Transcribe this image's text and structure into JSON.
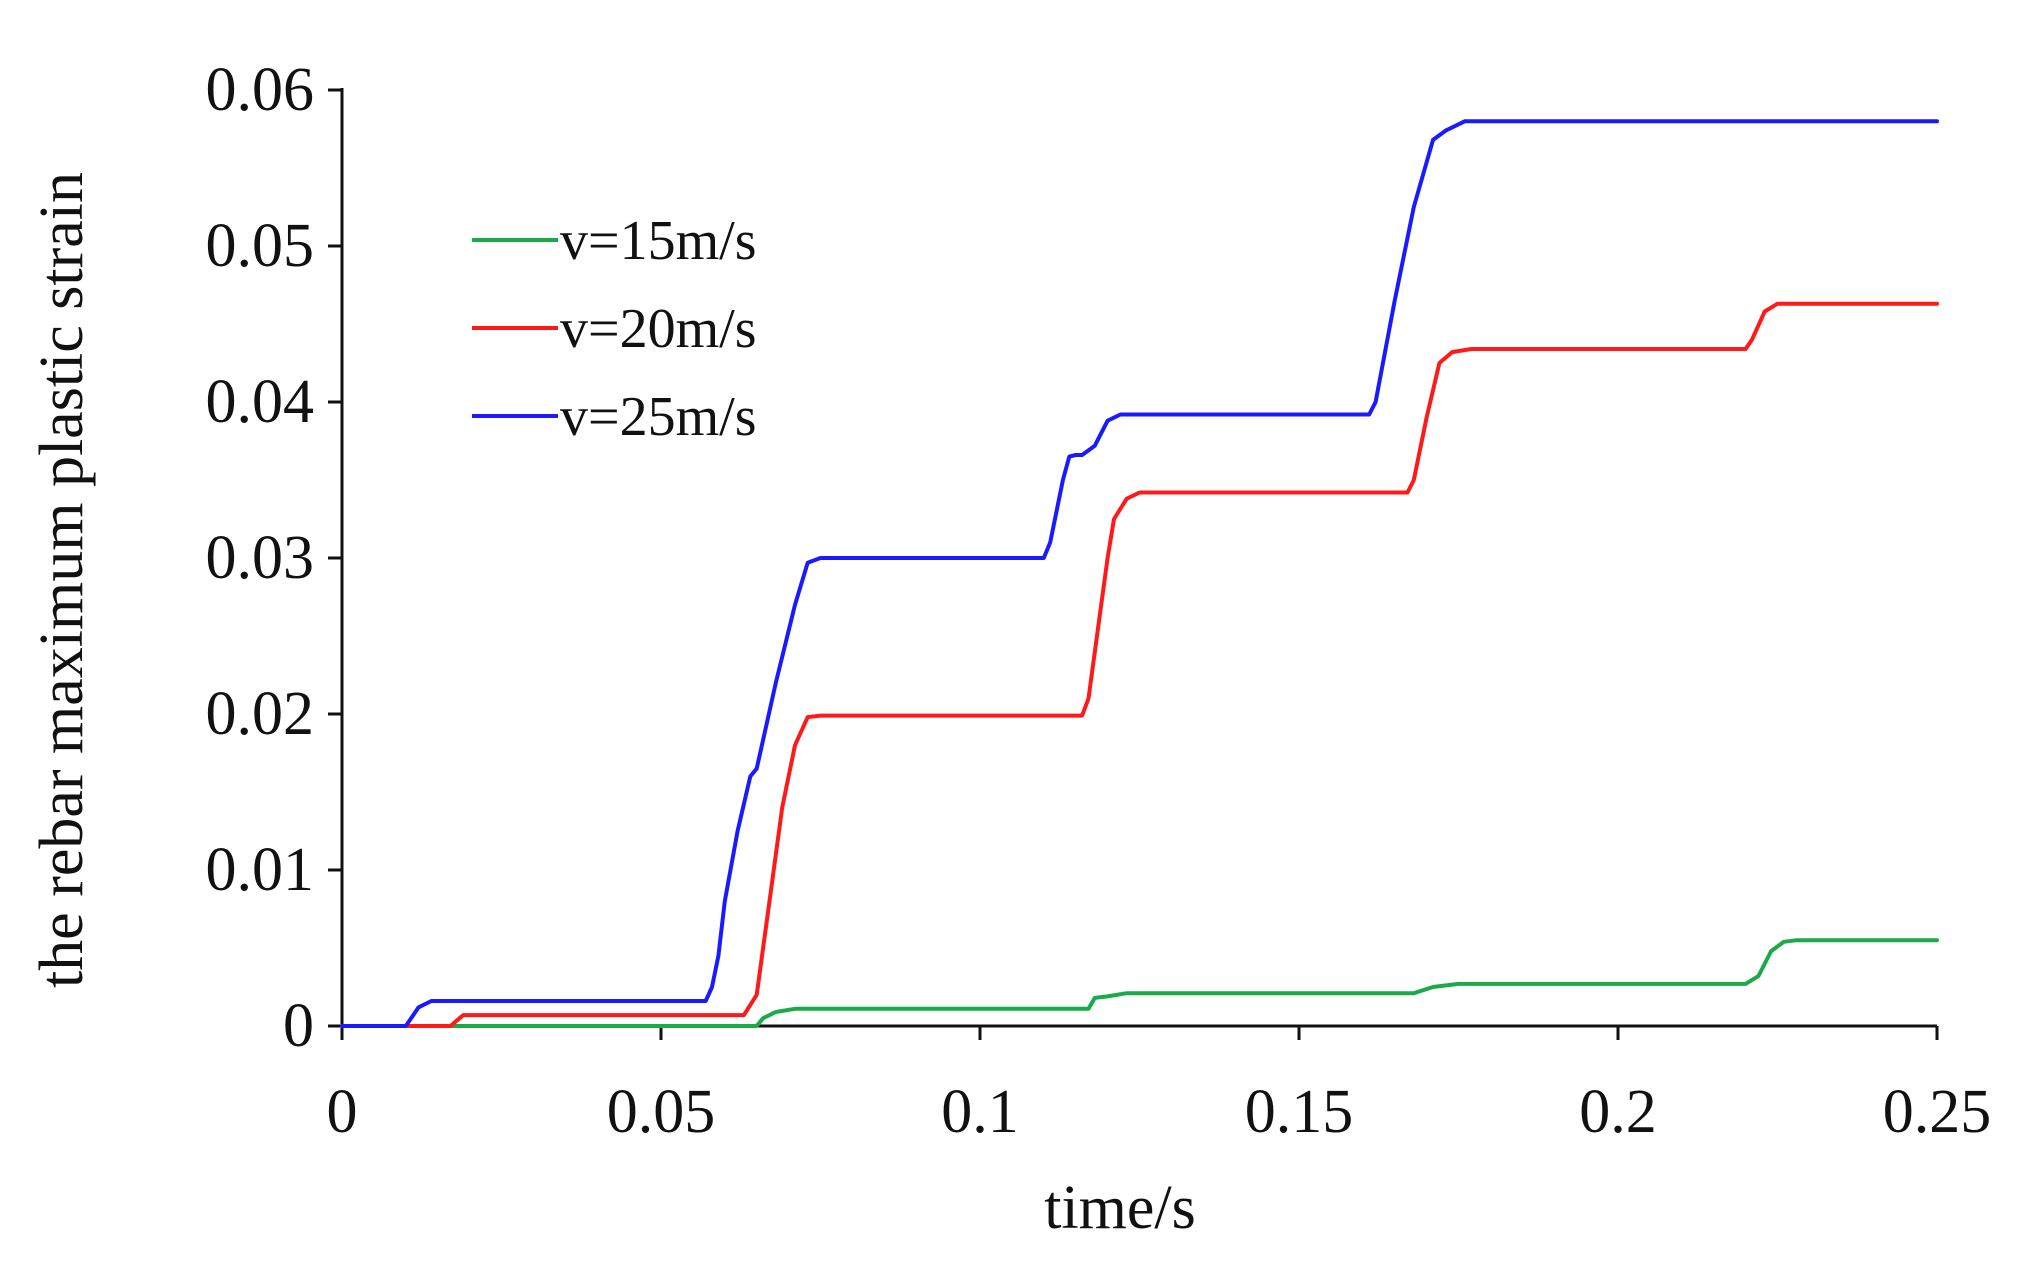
{
  "chart_data": {
    "type": "line",
    "title": "",
    "xlabel": "time/s",
    "ylabel": "the rebar maximum plastic strain",
    "xlim": [
      0,
      0.25
    ],
    "ylim": [
      0,
      0.06
    ],
    "x_ticks": [
      0,
      0.05,
      0.1,
      0.15,
      0.2,
      0.25
    ],
    "x_tick_labels": [
      "0",
      "0.05",
      "0.1",
      "0.15",
      "0.2",
      "0.25"
    ],
    "y_ticks": [
      0,
      0.01,
      0.02,
      0.03,
      0.04,
      0.05,
      0.06
    ],
    "y_tick_labels": [
      "0",
      "0.01",
      "0.02",
      "0.03",
      "0.04",
      "0.05",
      "0.06"
    ],
    "grid": false,
    "legend_position": "top-left",
    "series": [
      {
        "name": "v=15m/s",
        "color": "#1aaa48",
        "points": [
          [
            0,
            0
          ],
          [
            0.065,
            0
          ],
          [
            0.066,
            0.0005
          ],
          [
            0.068,
            0.0009
          ],
          [
            0.071,
            0.0011
          ],
          [
            0.117,
            0.0011
          ],
          [
            0.118,
            0.0018
          ],
          [
            0.12,
            0.0019
          ],
          [
            0.123,
            0.0021
          ],
          [
            0.168,
            0.0021
          ],
          [
            0.171,
            0.0025
          ],
          [
            0.175,
            0.0027
          ],
          [
            0.22,
            0.0027
          ],
          [
            0.222,
            0.0032
          ],
          [
            0.224,
            0.0048
          ],
          [
            0.226,
            0.0054
          ],
          [
            0.228,
            0.0055
          ],
          [
            0.25,
            0.0055
          ]
        ]
      },
      {
        "name": "v=20m/s",
        "color": "#ff1a1a",
        "points": [
          [
            0,
            0
          ],
          [
            0.017,
            0
          ],
          [
            0.019,
            0.0007
          ],
          [
            0.063,
            0.0007
          ],
          [
            0.065,
            0.002
          ],
          [
            0.067,
            0.008
          ],
          [
            0.069,
            0.014
          ],
          [
            0.071,
            0.018
          ],
          [
            0.073,
            0.0198
          ],
          [
            0.075,
            0.0199
          ],
          [
            0.116,
            0.0199
          ],
          [
            0.117,
            0.021
          ],
          [
            0.119,
            0.027
          ],
          [
            0.12,
            0.03
          ],
          [
            0.121,
            0.0325
          ],
          [
            0.123,
            0.0338
          ],
          [
            0.125,
            0.0342
          ],
          [
            0.167,
            0.0342
          ],
          [
            0.168,
            0.035
          ],
          [
            0.17,
            0.039
          ],
          [
            0.172,
            0.0425
          ],
          [
            0.174,
            0.0432
          ],
          [
            0.177,
            0.0434
          ],
          [
            0.22,
            0.0434
          ],
          [
            0.221,
            0.044
          ],
          [
            0.223,
            0.0458
          ],
          [
            0.225,
            0.0463
          ],
          [
            0.25,
            0.0463
          ]
        ]
      },
      {
        "name": "v=25m/s",
        "color": "#1a1aff",
        "points": [
          [
            0,
            0
          ],
          [
            0.01,
            0
          ],
          [
            0.012,
            0.0012
          ],
          [
            0.014,
            0.0016
          ],
          [
            0.057,
            0.0016
          ],
          [
            0.058,
            0.0025
          ],
          [
            0.059,
            0.0045
          ],
          [
            0.06,
            0.008
          ],
          [
            0.062,
            0.0125
          ],
          [
            0.064,
            0.016
          ],
          [
            0.065,
            0.0165
          ],
          [
            0.068,
            0.022
          ],
          [
            0.071,
            0.027
          ],
          [
            0.073,
            0.0297
          ],
          [
            0.075,
            0.03
          ],
          [
            0.11,
            0.03
          ],
          [
            0.111,
            0.031
          ],
          [
            0.113,
            0.035
          ],
          [
            0.114,
            0.0365
          ],
          [
            0.115,
            0.0366
          ],
          [
            0.116,
            0.0366
          ],
          [
            0.118,
            0.0372
          ],
          [
            0.12,
            0.0388
          ],
          [
            0.122,
            0.0392
          ],
          [
            0.161,
            0.0392
          ],
          [
            0.162,
            0.04
          ],
          [
            0.165,
            0.0465
          ],
          [
            0.168,
            0.0525
          ],
          [
            0.171,
            0.0568
          ],
          [
            0.173,
            0.0574
          ],
          [
            0.176,
            0.058
          ],
          [
            0.25,
            0.058
          ]
        ]
      }
    ]
  }
}
